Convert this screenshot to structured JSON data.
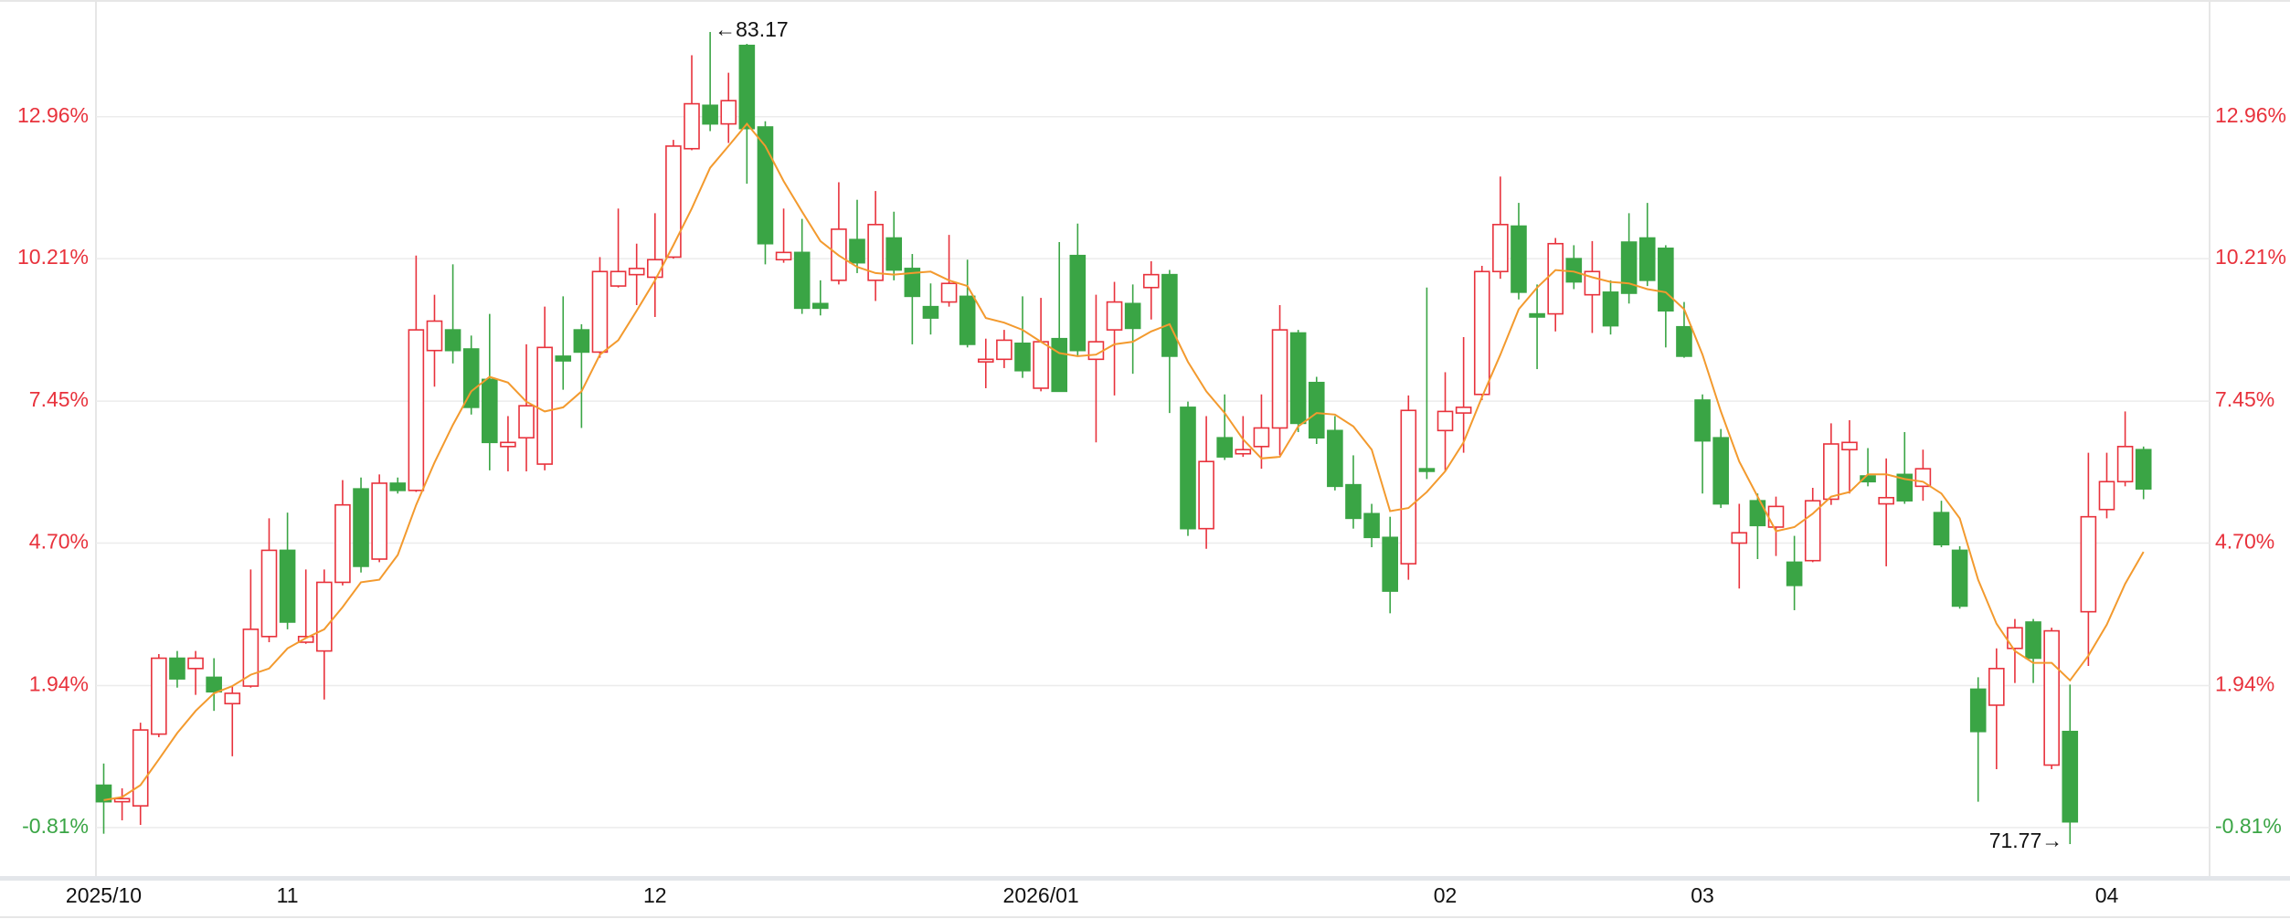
{
  "chart_data": {
    "type": "candlestick",
    "categories": [
      "2025/10",
      null,
      null,
      null,
      null,
      null,
      null,
      null,
      null,
      null,
      "11",
      null,
      null,
      null,
      null,
      null,
      null,
      null,
      null,
      null,
      null,
      null,
      null,
      null,
      null,
      null,
      null,
      null,
      null,
      null,
      "12",
      null,
      null,
      null,
      null,
      null,
      null,
      null,
      null,
      null,
      null,
      null,
      null,
      null,
      null,
      null,
      null,
      null,
      null,
      null,
      null,
      "2026/01",
      null,
      null,
      null,
      null,
      null,
      null,
      null,
      null,
      null,
      null,
      null,
      null,
      null,
      null,
      null,
      null,
      null,
      null,
      null,
      null,
      null,
      "02",
      null,
      null,
      null,
      null,
      null,
      null,
      null,
      null,
      null,
      null,
      null,
      null,
      null,
      "03",
      null,
      null,
      null,
      null,
      null,
      null,
      null,
      null,
      null,
      null,
      null,
      null,
      null,
      null,
      null,
      null,
      null,
      null,
      null,
      null,
      null,
      "04",
      null,
      null
    ],
    "open": [
      0.01,
      -0.31,
      -0.39,
      1.0,
      2.47,
      2.27,
      2.1,
      1.59,
      1.93,
      2.89,
      4.56,
      2.78,
      2.61,
      3.94,
      5.75,
      4.39,
      5.86,
      5.72,
      8.43,
      8.83,
      8.46,
      7.87,
      6.57,
      6.74,
      6.23,
      8.32,
      8.83,
      8.4,
      9.68,
      9.9,
      9.85,
      10.24,
      12.34,
      13.18,
      12.82,
      14.34,
      12.76,
      10.19,
      10.33,
      9.34,
      9.79,
      10.58,
      9.79,
      10.61,
      10.02,
      9.28,
      9.37,
      9.48,
      8.21,
      8.26,
      8.57,
      7.7,
      8.66,
      10.27,
      8.26,
      8.83,
      9.34,
      9.65,
      9.9,
      7.33,
      4.98,
      6.74,
      6.43,
      6.57,
      6.93,
      8.77,
      7.81,
      6.88,
      5.83,
      5.27,
      4.81,
      4.3,
      6.14,
      6.88,
      7.22,
      7.58,
      9.96,
      10.84,
      9.14,
      9.14,
      10.21,
      9.51,
      9.56,
      10.53,
      10.61,
      10.41,
      8.89,
      7.47,
      6.74,
      4.7,
      5.52,
      5.01,
      4.33,
      4.36,
      5.55,
      6.51,
      6.0,
      5.46,
      6.03,
      5.8,
      5.29,
      4.56,
      1.87,
      1.56,
      2.66,
      3.17,
      0.4,
      1.05,
      3.37,
      5.35,
      5.89,
      6.51
    ],
    "high": [
      0.43,
      -0.05,
      1.22,
      2.55,
      2.61,
      2.61,
      2.47,
      1.93,
      4.19,
      5.18,
      5.29,
      4.19,
      4.19,
      5.92,
      5.97,
      6.03,
      5.97,
      10.27,
      9.51,
      10.1,
      8.72,
      9.14,
      7.16,
      8.55,
      9.28,
      9.48,
      8.94,
      10.24,
      11.18,
      10.5,
      11.09,
      12.51,
      14.15,
      14.6,
      13.81,
      14.37,
      12.87,
      11.18,
      10.98,
      9.79,
      11.69,
      11.35,
      11.52,
      11.12,
      10.3,
      9.73,
      10.67,
      10.19,
      8.66,
      8.83,
      9.48,
      9.45,
      10.53,
      10.89,
      9.51,
      9.76,
      9.71,
      10.16,
      9.99,
      7.44,
      7.16,
      7.58,
      7.16,
      7.58,
      9.31,
      8.83,
      7.92,
      7.16,
      6.4,
      5.46,
      5.21,
      7.56,
      9.65,
      8.01,
      8.69,
      10.07,
      11.8,
      11.29,
      9.71,
      10.61,
      10.47,
      10.55,
      9.79,
      11.09,
      11.29,
      10.47,
      9.37,
      7.58,
      6.91,
      5.46,
      5.66,
      5.6,
      4.84,
      5.77,
      7.02,
      7.08,
      6.54,
      6.34,
      6.85,
      6.51,
      5.52,
      4.64,
      2.1,
      2.66,
      3.23,
      3.23,
      3.06,
      1.96,
      6.45,
      6.45,
      7.25,
      6.57
    ],
    "low": [
      -0.93,
      -0.67,
      -0.76,
      0.94,
      1.9,
      1.76,
      1.45,
      0.57,
      1.9,
      2.78,
      3.03,
      2.75,
      1.67,
      3.88,
      4.13,
      4.33,
      5.66,
      5.69,
      7.73,
      8.18,
      7.19,
      6.11,
      6.09,
      6.09,
      6.11,
      7.67,
      6.93,
      8.29,
      9.65,
      9.31,
      9.08,
      10.21,
      12.31,
      12.68,
      12.45,
      11.66,
      10.1,
      10.13,
      9.14,
      9.11,
      9.71,
      9.93,
      9.39,
      9.79,
      8.55,
      8.74,
      9.28,
      8.49,
      7.7,
      8.09,
      7.9,
      7.64,
      7.64,
      8.32,
      6.65,
      7.56,
      7.98,
      9.03,
      7.22,
      4.84,
      4.59,
      6.31,
      6.37,
      6.14,
      6.4,
      6.85,
      6.62,
      5.72,
      4.98,
      4.62,
      3.34,
      3.99,
      5.94,
      6.09,
      6.45,
      7.47,
      9.82,
      9.42,
      8.07,
      8.8,
      9.62,
      8.77,
      8.74,
      9.34,
      9.68,
      8.49,
      8.29,
      5.66,
      5.38,
      3.82,
      4.39,
      4.45,
      3.4,
      4.33,
      5.44,
      5.66,
      5.8,
      4.25,
      5.46,
      5.52,
      4.62,
      3.43,
      -0.31,
      0.32,
      1.99,
      1.99,
      0.32,
      -1.13,
      2.32,
      5.18,
      5.8,
      5.55
    ],
    "close": [
      -0.31,
      -0.25,
      1.08,
      2.47,
      2.07,
      2.47,
      1.82,
      1.79,
      3.03,
      4.56,
      3.17,
      2.89,
      3.94,
      5.44,
      4.25,
      5.86,
      5.72,
      8.83,
      9.0,
      8.43,
      7.33,
      6.65,
      6.65,
      7.36,
      8.49,
      8.23,
      8.4,
      9.96,
      9.96,
      10.02,
      10.19,
      12.39,
      13.21,
      12.82,
      13.27,
      12.73,
      10.5,
      10.33,
      9.25,
      9.25,
      10.78,
      10.13,
      10.87,
      9.99,
      9.48,
      9.06,
      9.73,
      8.55,
      8.26,
      8.63,
      8.04,
      8.6,
      7.64,
      8.43,
      8.6,
      9.37,
      8.86,
      9.9,
      8.32,
      4.98,
      6.28,
      6.37,
      6.51,
      6.93,
      8.83,
      7.02,
      6.74,
      5.8,
      5.18,
      4.81,
      3.77,
      7.27,
      6.09,
      7.25,
      7.33,
      9.96,
      10.87,
      9.56,
      9.08,
      10.5,
      9.76,
      9.96,
      8.91,
      9.54,
      9.79,
      9.2,
      8.32,
      6.68,
      5.46,
      4.9,
      5.04,
      5.41,
      3.88,
      5.52,
      6.62,
      6.65,
      5.89,
      5.58,
      5.52,
      6.14,
      4.67,
      3.48,
      1.05,
      2.27,
      3.06,
      2.47,
      3.0,
      -0.7,
      5.21,
      5.89,
      6.57,
      5.75
    ],
    "ma_values": [
      -0.28,
      -0.22,
      0.01,
      0.51,
      1.02,
      1.45,
      1.79,
      1.93,
      2.15,
      2.27,
      2.66,
      2.86,
      3.03,
      3.46,
      3.94,
      3.99,
      4.47,
      5.44,
      6.26,
      6.99,
      7.64,
      7.92,
      7.81,
      7.44,
      7.25,
      7.33,
      7.64,
      8.35,
      8.63,
      9.2,
      9.79,
      10.47,
      11.18,
      11.97,
      12.39,
      12.82,
      12.39,
      11.71,
      11.12,
      10.55,
      10.27,
      10.05,
      9.93,
      9.9,
      9.93,
      9.96,
      9.79,
      9.68,
      9.06,
      8.97,
      8.83,
      8.6,
      8.38,
      8.32,
      8.35,
      8.55,
      8.6,
      8.8,
      8.94,
      8.21,
      7.64,
      7.22,
      6.71,
      6.34,
      6.37,
      6.96,
      7.22,
      7.19,
      6.96,
      6.51,
      5.32,
      5.38,
      5.69,
      6.09,
      6.65,
      7.53,
      8.35,
      9.23,
      9.65,
      9.99,
      9.96,
      9.85,
      9.76,
      9.73,
      9.62,
      9.56,
      9.23,
      8.35,
      7.25,
      6.28,
      5.6,
      4.93,
      5.01,
      5.27,
      5.6,
      5.69,
      6.03,
      6.03,
      5.94,
      5.89,
      5.66,
      5.18,
      3.99,
      3.14,
      2.61,
      2.38,
      2.38,
      2.04,
      2.52,
      3.12,
      3.91,
      4.53
    ],
    "ma_color": "#f39a2e",
    "up_color": "#e8323c",
    "down_color": "#3aa545",
    "ylim": [
      -1.75,
      15.22
    ],
    "yticks": [
      {
        "value": -0.81,
        "label": "-0.81%"
      },
      {
        "value": 1.94,
        "label": "1.94%"
      },
      {
        "value": 4.7,
        "label": "4.70%"
      },
      {
        "value": 7.45,
        "label": "7.45%"
      },
      {
        "value": 10.21,
        "label": "10.21%"
      },
      {
        "value": 12.96,
        "label": "12.96%"
      }
    ],
    "grid": true,
    "high_label": "←83.17",
    "low_label": "71.77→"
  }
}
